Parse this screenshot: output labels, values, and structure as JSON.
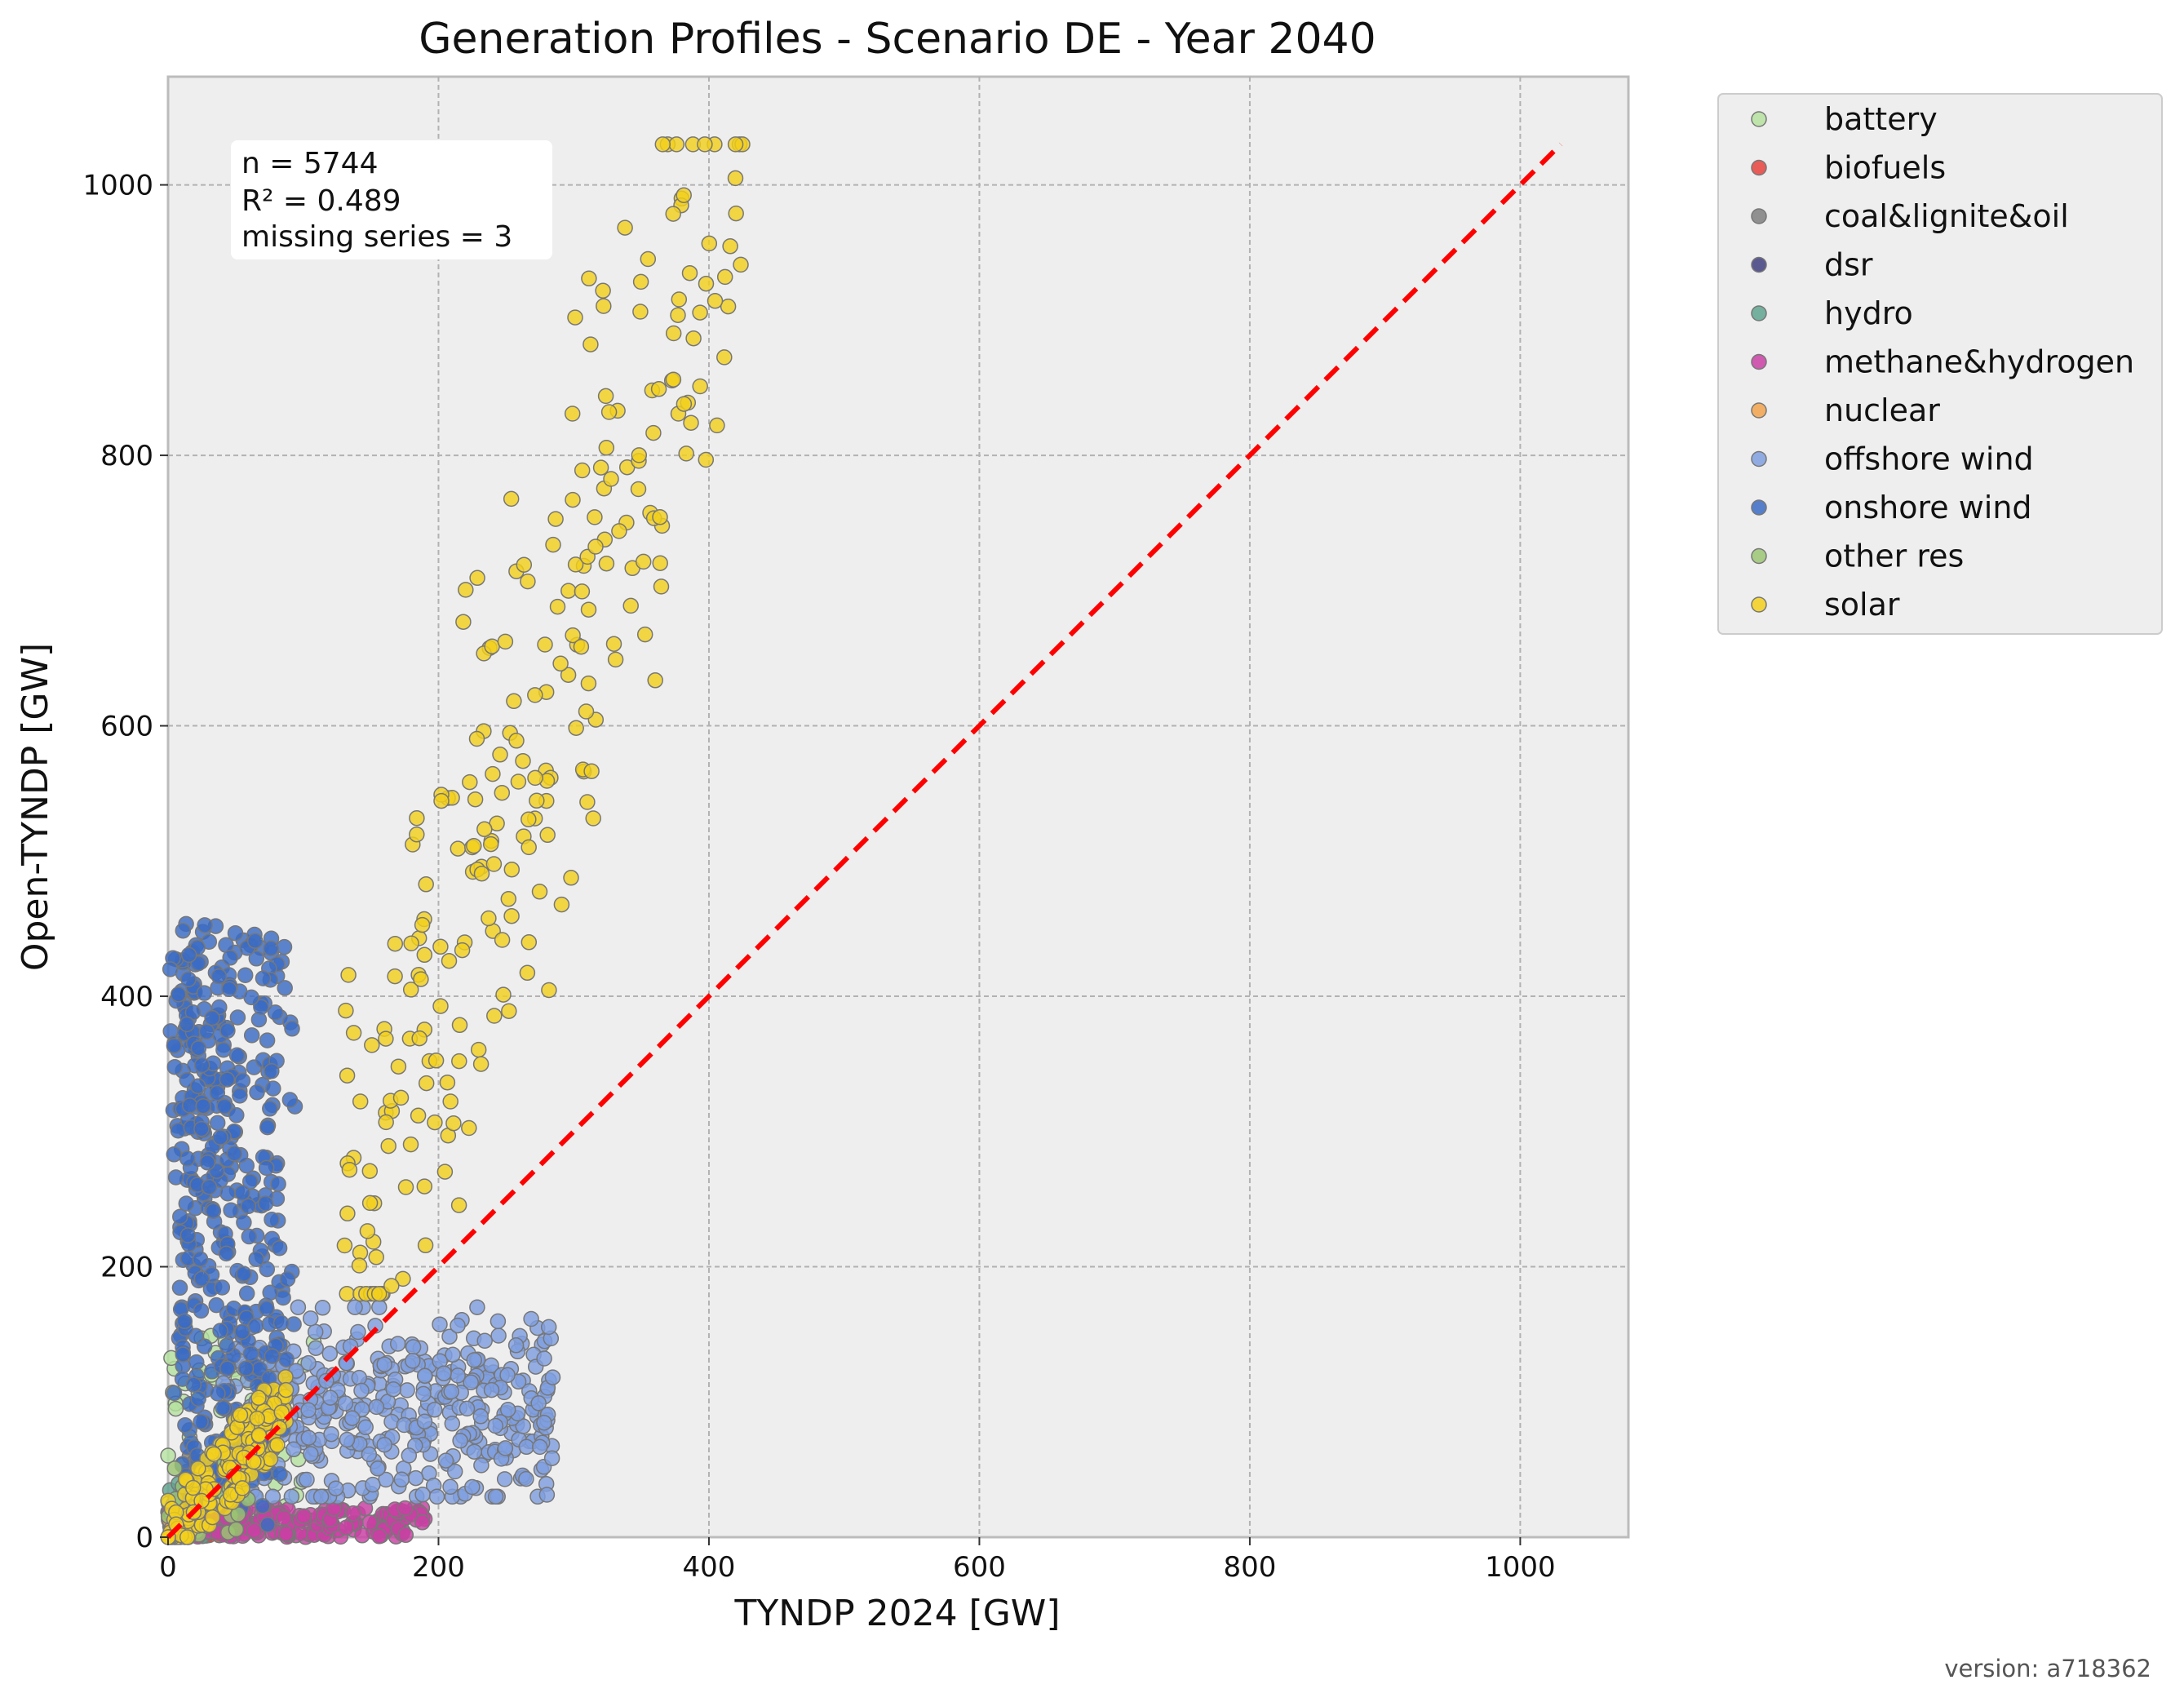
{
  "chart_data": {
    "type": "scatter",
    "title": "Generation Profiles - Scenario DE - Year 2040",
    "xlabel": "TYNDP 2024 [GW]",
    "ylabel": "Open-TYNDP [GW]",
    "xlim": [
      0,
      1080
    ],
    "ylim": [
      0,
      1080
    ],
    "x_ticks": [
      0,
      200,
      400,
      600,
      800,
      1000
    ],
    "y_ticks": [
      0,
      200,
      400,
      600,
      800,
      1000
    ],
    "grid": true,
    "legend_position": "outside-right",
    "reference_line": {
      "from": [
        0,
        0
      ],
      "to": [
        1030,
        1030
      ],
      "color": "#ff0000",
      "style": "dashed"
    },
    "stats": [
      "n = 5744",
      "R² = 0.489",
      "missing series = 3"
    ],
    "series": [
      {
        "name": "battery",
        "color": "#b5e2a0",
        "cloud": {
          "x": [
            0,
            110
          ],
          "y": [
            0,
            150
          ]
        }
      },
      {
        "name": "biofuels",
        "color": "#e8413c",
        "cloud": {
          "x": [
            0,
            40
          ],
          "y": [
            0,
            15
          ]
        }
      },
      {
        "name": "coal&lignite&oil",
        "color": "#7f7f7f",
        "cloud": {
          "x": [
            0,
            30
          ],
          "y": [
            0,
            60
          ]
        }
      },
      {
        "name": "dsr",
        "color": "#3f3f7f",
        "cloud": {
          "x": [
            0,
            15
          ],
          "y": [
            0,
            10
          ]
        }
      },
      {
        "name": "hydro",
        "color": "#5fa38f",
        "cloud": {
          "x": [
            0,
            40
          ],
          "y": [
            0,
            40
          ]
        }
      },
      {
        "name": "methane&hydrogen",
        "color": "#c940a4",
        "cloud": {
          "x": [
            0,
            240
          ],
          "y": [
            0,
            25
          ]
        }
      },
      {
        "name": "nuclear",
        "color": "#f2a24b",
        "cloud": {
          "x": [
            0,
            20
          ],
          "y": [
            0,
            20
          ]
        }
      },
      {
        "name": "offshore wind",
        "color": "#7f9fdf",
        "cloud": {
          "x": [
            40,
            285
          ],
          "y": [
            30,
            170
          ]
        }
      },
      {
        "name": "onshore wind",
        "color": "#3a6bc4",
        "cloud": {
          "x": [
            0,
            100
          ],
          "y": [
            0,
            510
          ]
        }
      },
      {
        "name": "other res",
        "color": "#9bc572",
        "cloud": {
          "x": [
            0,
            60
          ],
          "y": [
            0,
            60
          ]
        }
      },
      {
        "name": "solar",
        "color": "#f3cf1c",
        "cloud": {
          "x": [
            0,
            430
          ],
          "y": [
            0,
            1030
          ]
        }
      }
    ]
  },
  "footer": {
    "version": "version: a718362"
  }
}
